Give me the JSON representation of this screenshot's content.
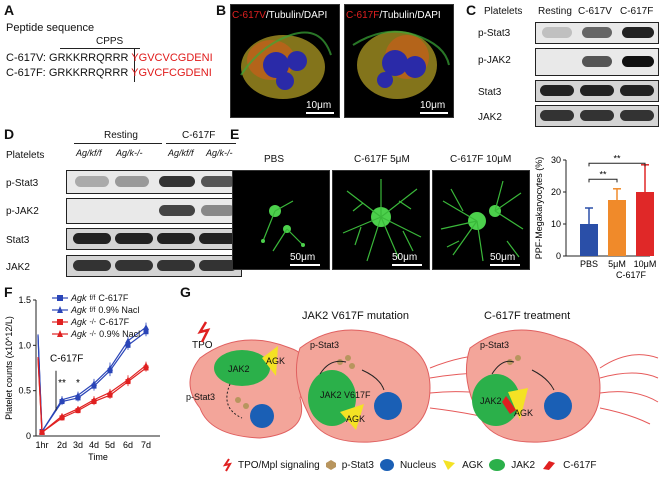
{
  "panels": {
    "A": "A",
    "B": "B",
    "C": "C",
    "D": "D",
    "E": "E",
    "F": "F",
    "G": "G"
  },
  "panelA": {
    "heading": "Peptide sequence",
    "cpps": "CPPS",
    "rows": [
      {
        "name": "C-617V:",
        "black": "GRKKRRQRRR",
        "red": "YGVCVCGDENI"
      },
      {
        "name": "C-617F:",
        "black": "GRKKRRQRRR",
        "red": "YGVCFCGDENI"
      }
    ]
  },
  "panelB": {
    "img1": {
      "target": "C-617V",
      "rest": "/Tubulin/DAPI",
      "scale": "10μm"
    },
    "img2": {
      "target": "C-617F",
      "rest": "/Tubulin/DAPI",
      "scale": "10μm"
    }
  },
  "panelC": {
    "platelets": "Platelets",
    "cols": [
      "Resting",
      "C-617V",
      "C-617F"
    ],
    "rows": [
      "p-Stat3",
      "p-JAK2",
      "Stat3",
      "JAK2"
    ]
  },
  "panelD": {
    "platelets": "Platelets",
    "groups": [
      "Resting",
      "C-617F"
    ],
    "cols": [
      "Ag/kf/f",
      "Ag/k-/-",
      "Ag/kf/f",
      "Ag/k-/-"
    ],
    "rows": [
      "p-Stat3",
      "p-JAK2",
      "Stat3",
      "JAK2"
    ]
  },
  "panelE": {
    "labels": [
      "PBS",
      "C-617F 5μM",
      "C-617F 10μM"
    ],
    "scale": "50μm",
    "chart_data": {
      "type": "bar",
      "ylabel": "PPF-Megakaryocytes (%)",
      "categories": [
        "PBS",
        "5μM",
        "10μM"
      ],
      "xgroup": "C-617F",
      "values": [
        10,
        17.5,
        20
      ],
      "errors": [
        5,
        3.5,
        8.5
      ],
      "ylim": [
        0,
        30
      ],
      "yticks": [
        0,
        10,
        20,
        30
      ],
      "colors": [
        "#2a4fa8",
        "#f08a2a",
        "#e02828"
      ],
      "sig": [
        "**",
        "**"
      ]
    }
  },
  "panelF": {
    "legend": [
      {
        "geno": "Agk",
        "sup": "f/f",
        "cond": "C-617F",
        "color": "#2a45b8",
        "marker": "square"
      },
      {
        "geno": "Agk",
        "sup": "f/f",
        "cond": "0.9% Nacl",
        "color": "#2a45b8",
        "marker": "triangle"
      },
      {
        "geno": "Agk",
        "sup": "-/-",
        "cond": "C-617F",
        "color": "#e02020",
        "marker": "square"
      },
      {
        "geno": "Agk",
        "sup": "-/-",
        "cond": "0.9% Nacl",
        "color": "#e02020",
        "marker": "triangle"
      }
    ],
    "annotation": "C-617F",
    "chart_data": {
      "type": "line",
      "ylabel": "Platelet counts (x10^12/L)",
      "xlabel": "Time",
      "x": [
        "1hr",
        "2d",
        "3d",
        "4d",
        "5d",
        "6d",
        "7d"
      ],
      "ylim": [
        0,
        1.5
      ],
      "yticks": [
        0,
        0.5,
        1.0,
        1.5
      ],
      "ytick_labels": [
        "0",
        "0.5",
        "1.0",
        "1.5"
      ],
      "pre_point": {
        "x": "0",
        "values": [
          1.12,
          1.1,
          0.85,
          0.87
        ]
      },
      "series": [
        {
          "name": "Agk f/f C-617F",
          "values": [
            0.05,
            0.38,
            0.42,
            0.55,
            0.72,
            1.0,
            1.15
          ],
          "err": [
            0.02,
            0.04,
            0.04,
            0.05,
            0.06,
            0.05,
            0.05
          ]
        },
        {
          "name": "Agk f/f 0.9% Nacl",
          "values": [
            0.05,
            0.4,
            0.45,
            0.58,
            0.75,
            1.05,
            1.2
          ],
          "err": [
            0.02,
            0.04,
            0.04,
            0.05,
            0.06,
            0.05,
            0.05
          ]
        },
        {
          "name": "Agk -/- C-617F",
          "values": [
            0.04,
            0.2,
            0.28,
            0.38,
            0.45,
            0.6,
            0.75
          ],
          "err": [
            0.02,
            0.03,
            0.03,
            0.04,
            0.04,
            0.05,
            0.04
          ]
        },
        {
          "name": "Agk -/- 0.9% Nacl",
          "values": [
            0.04,
            0.22,
            0.3,
            0.4,
            0.48,
            0.62,
            0.78
          ],
          "err": [
            0.02,
            0.03,
            0.03,
            0.04,
            0.04,
            0.05,
            0.04
          ]
        }
      ],
      "sig": [
        {
          "x": "2d",
          "text": "**"
        },
        {
          "x": "3d",
          "text": "*"
        }
      ]
    }
  },
  "panelG": {
    "titles": [
      "JAK2 V617F mutation",
      "C-617F treatment"
    ],
    "tpo": "TPO",
    "cell1": {
      "jak2": "JAK2",
      "agk": "AGK",
      "pstat": "p-Stat3"
    },
    "cell2": {
      "jak2": "JAK2 V617F",
      "agk": "AGK",
      "pstat": "p-Stat3"
    },
    "cell3": {
      "jak2": "JAK2",
      "agk": "AGK",
      "pstat": "p-Stat3"
    },
    "legend": [
      "TPO/Mpl signaling",
      "p-Stat3",
      "Nucleus",
      "AGK",
      "JAK2",
      "C-617F"
    ]
  }
}
